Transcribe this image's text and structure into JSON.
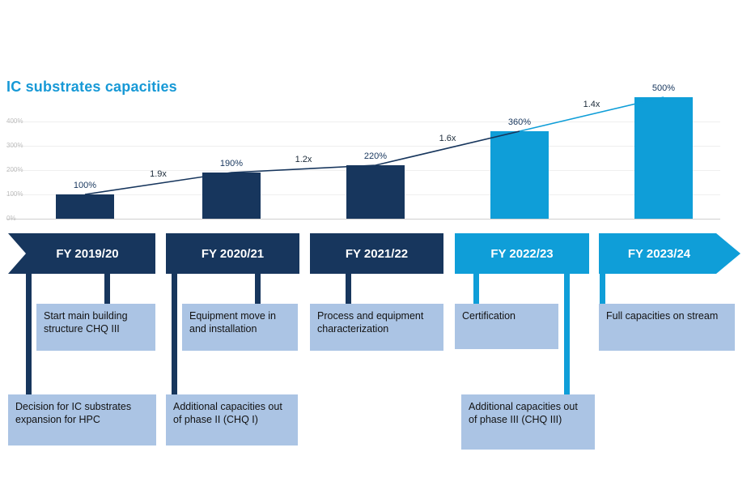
{
  "title": "IC substrates capacities",
  "colors": {
    "dark": "#17365d",
    "light": "#0f9ed8",
    "box": "#abc4e4",
    "title": "#1799d6"
  },
  "chart_data": {
    "type": "bar",
    "title": "IC substrates capacities",
    "categories": [
      "FY 2019/20",
      "FY 2020/21",
      "FY 2021/22",
      "FY 2022/23",
      "FY 2023/24"
    ],
    "values": [
      100,
      190,
      220,
      360,
      500
    ],
    "bar_labels": [
      "100%",
      "190%",
      "220%",
      "360%",
      "500%"
    ],
    "growth_labels": [
      "1.9x",
      "1.2x",
      "1.6x",
      "1.4x"
    ],
    "bar_colors_by_index": [
      "dark",
      "dark",
      "dark",
      "light",
      "light"
    ],
    "ytick_values": [
      0,
      100,
      200,
      300,
      400
    ],
    "ytick_labels": [
      "0%",
      "100%",
      "200%",
      "300%",
      "400%"
    ],
    "ylim": [
      0,
      500
    ],
    "grid": true,
    "legend_position": "none",
    "trend_line": "connects bar tops; dark navy between FY19/20-FY22/23, light blue to FY23/24"
  },
  "timeline": {
    "columns": [
      {
        "banner": "FY 2019/20",
        "theme": "dark",
        "top": "Start main building structure CHQ III",
        "bottom": "Decision for IC substrates expansion for HPC"
      },
      {
        "banner": "FY 2020/21",
        "theme": "dark",
        "top": "Equipment move in and installation",
        "bottom": "Additional capacities out of phase II (CHQ I)"
      },
      {
        "banner": "FY 2021/22",
        "theme": "dark",
        "top": "Process and equipment characterization"
      },
      {
        "banner": "FY 2022/23",
        "theme": "light",
        "top": "Certification",
        "bottom": "Additional capacities out of phase III (CHQ III)"
      },
      {
        "banner": "FY 2023/24",
        "theme": "light",
        "top": "Full capacities on stream"
      }
    ]
  }
}
